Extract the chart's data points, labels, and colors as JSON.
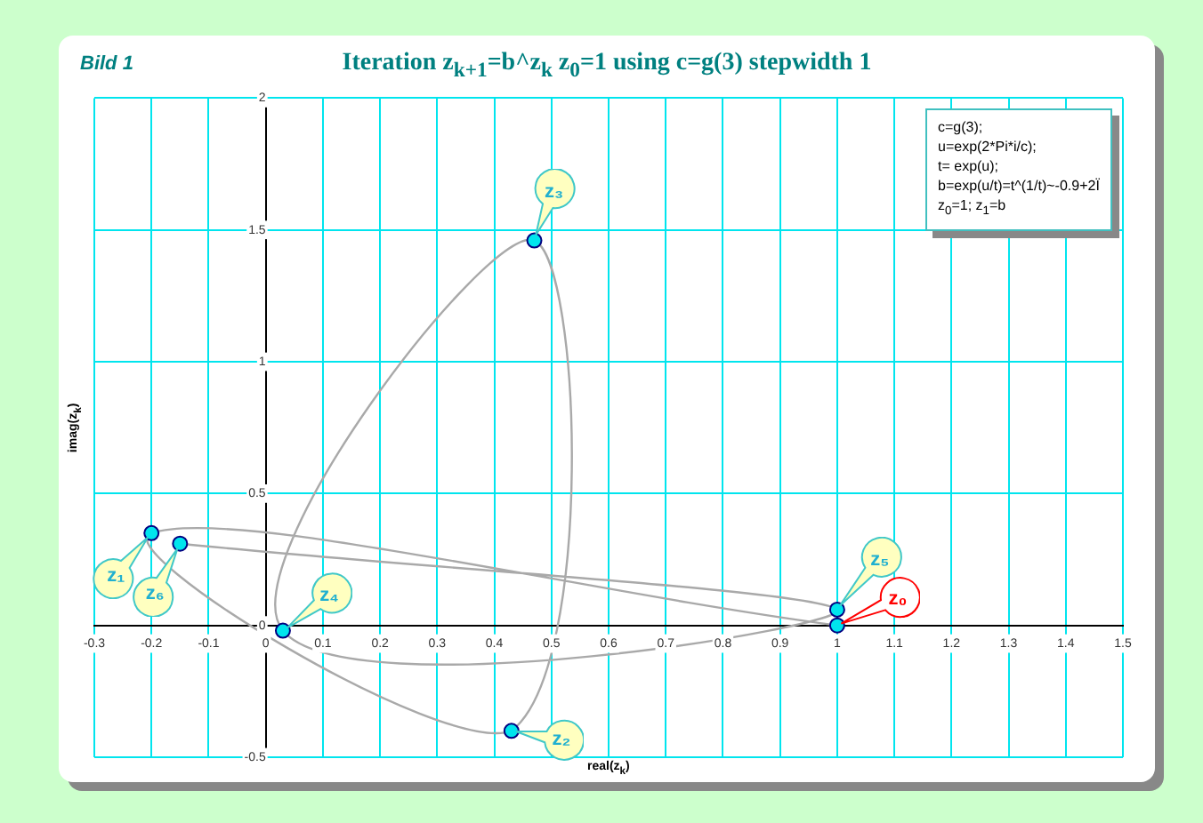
{
  "chart_data": {
    "type": "line",
    "title": "Iteration z$_{k+1}$=b^z$_{k}$  z$_{0}$=1  using c=g(3) stepwidth 1",
    "xlabel": "real(z$_{k}$)",
    "ylabel": "imag(z$_{k}$)",
    "x": [
      1,
      -0.2,
      0.43,
      0.47,
      0.03,
      1.0,
      -0.15
    ],
    "series": [
      {
        "color": "#a9a9a9",
        "colors": [
          "#00e5ee",
          "#00e5ee",
          "#00e5ee",
          "#00e5ee",
          "#00e5ee",
          "#00e5ee",
          "#00e5ee"
        ],
        "values": [
          0,
          0.35,
          -0.4,
          1.46,
          -0.02,
          0.06,
          0.31
        ]
      }
    ],
    "xlim": [
      -0.3,
      1.5
    ],
    "xticks": [
      -0.3,
      -0.2,
      -0.1,
      0,
      0.1,
      0.2,
      0.3,
      0.4,
      0.5,
      0.6,
      0.7,
      0.8,
      0.9,
      1,
      1.1,
      1.2,
      1.3,
      1.4,
      1.5
    ],
    "ylim": [
      -0.5,
      2
    ],
    "yticks": [
      -0.5,
      0,
      0.5,
      1,
      1.5,
      2
    ],
    "grid": true,
    "legend": false,
    "marker": "circle",
    "line_style": "solid",
    "annotations": [
      {
        "text": "z₀",
        "x": 1,
        "y": 0
      },
      {
        "text": "z₁",
        "x": -0.2,
        "y": 0.35
      },
      {
        "text": "z₂",
        "x": 0.43,
        "y": -0.4
      },
      {
        "text": "z₃",
        "x": 0.47,
        "y": 1.46
      },
      {
        "text": "z₄",
        "x": 0.03,
        "y": -0.02
      },
      {
        "text": "z₅",
        "x": 1.0,
        "y": 0.06
      },
      {
        "text": "z₆",
        "x": -0.15,
        "y": 0.31
      },
      "Bild 1",
      "c=g(3);",
      "u=exp(2*Pi*i/c);",
      "t= exp(u);",
      "b=exp(u/t)=t^(1/t)~-0.9+2Ï",
      "z$_{0}$=1; z$_{1}$=b"
    ]
  }
}
